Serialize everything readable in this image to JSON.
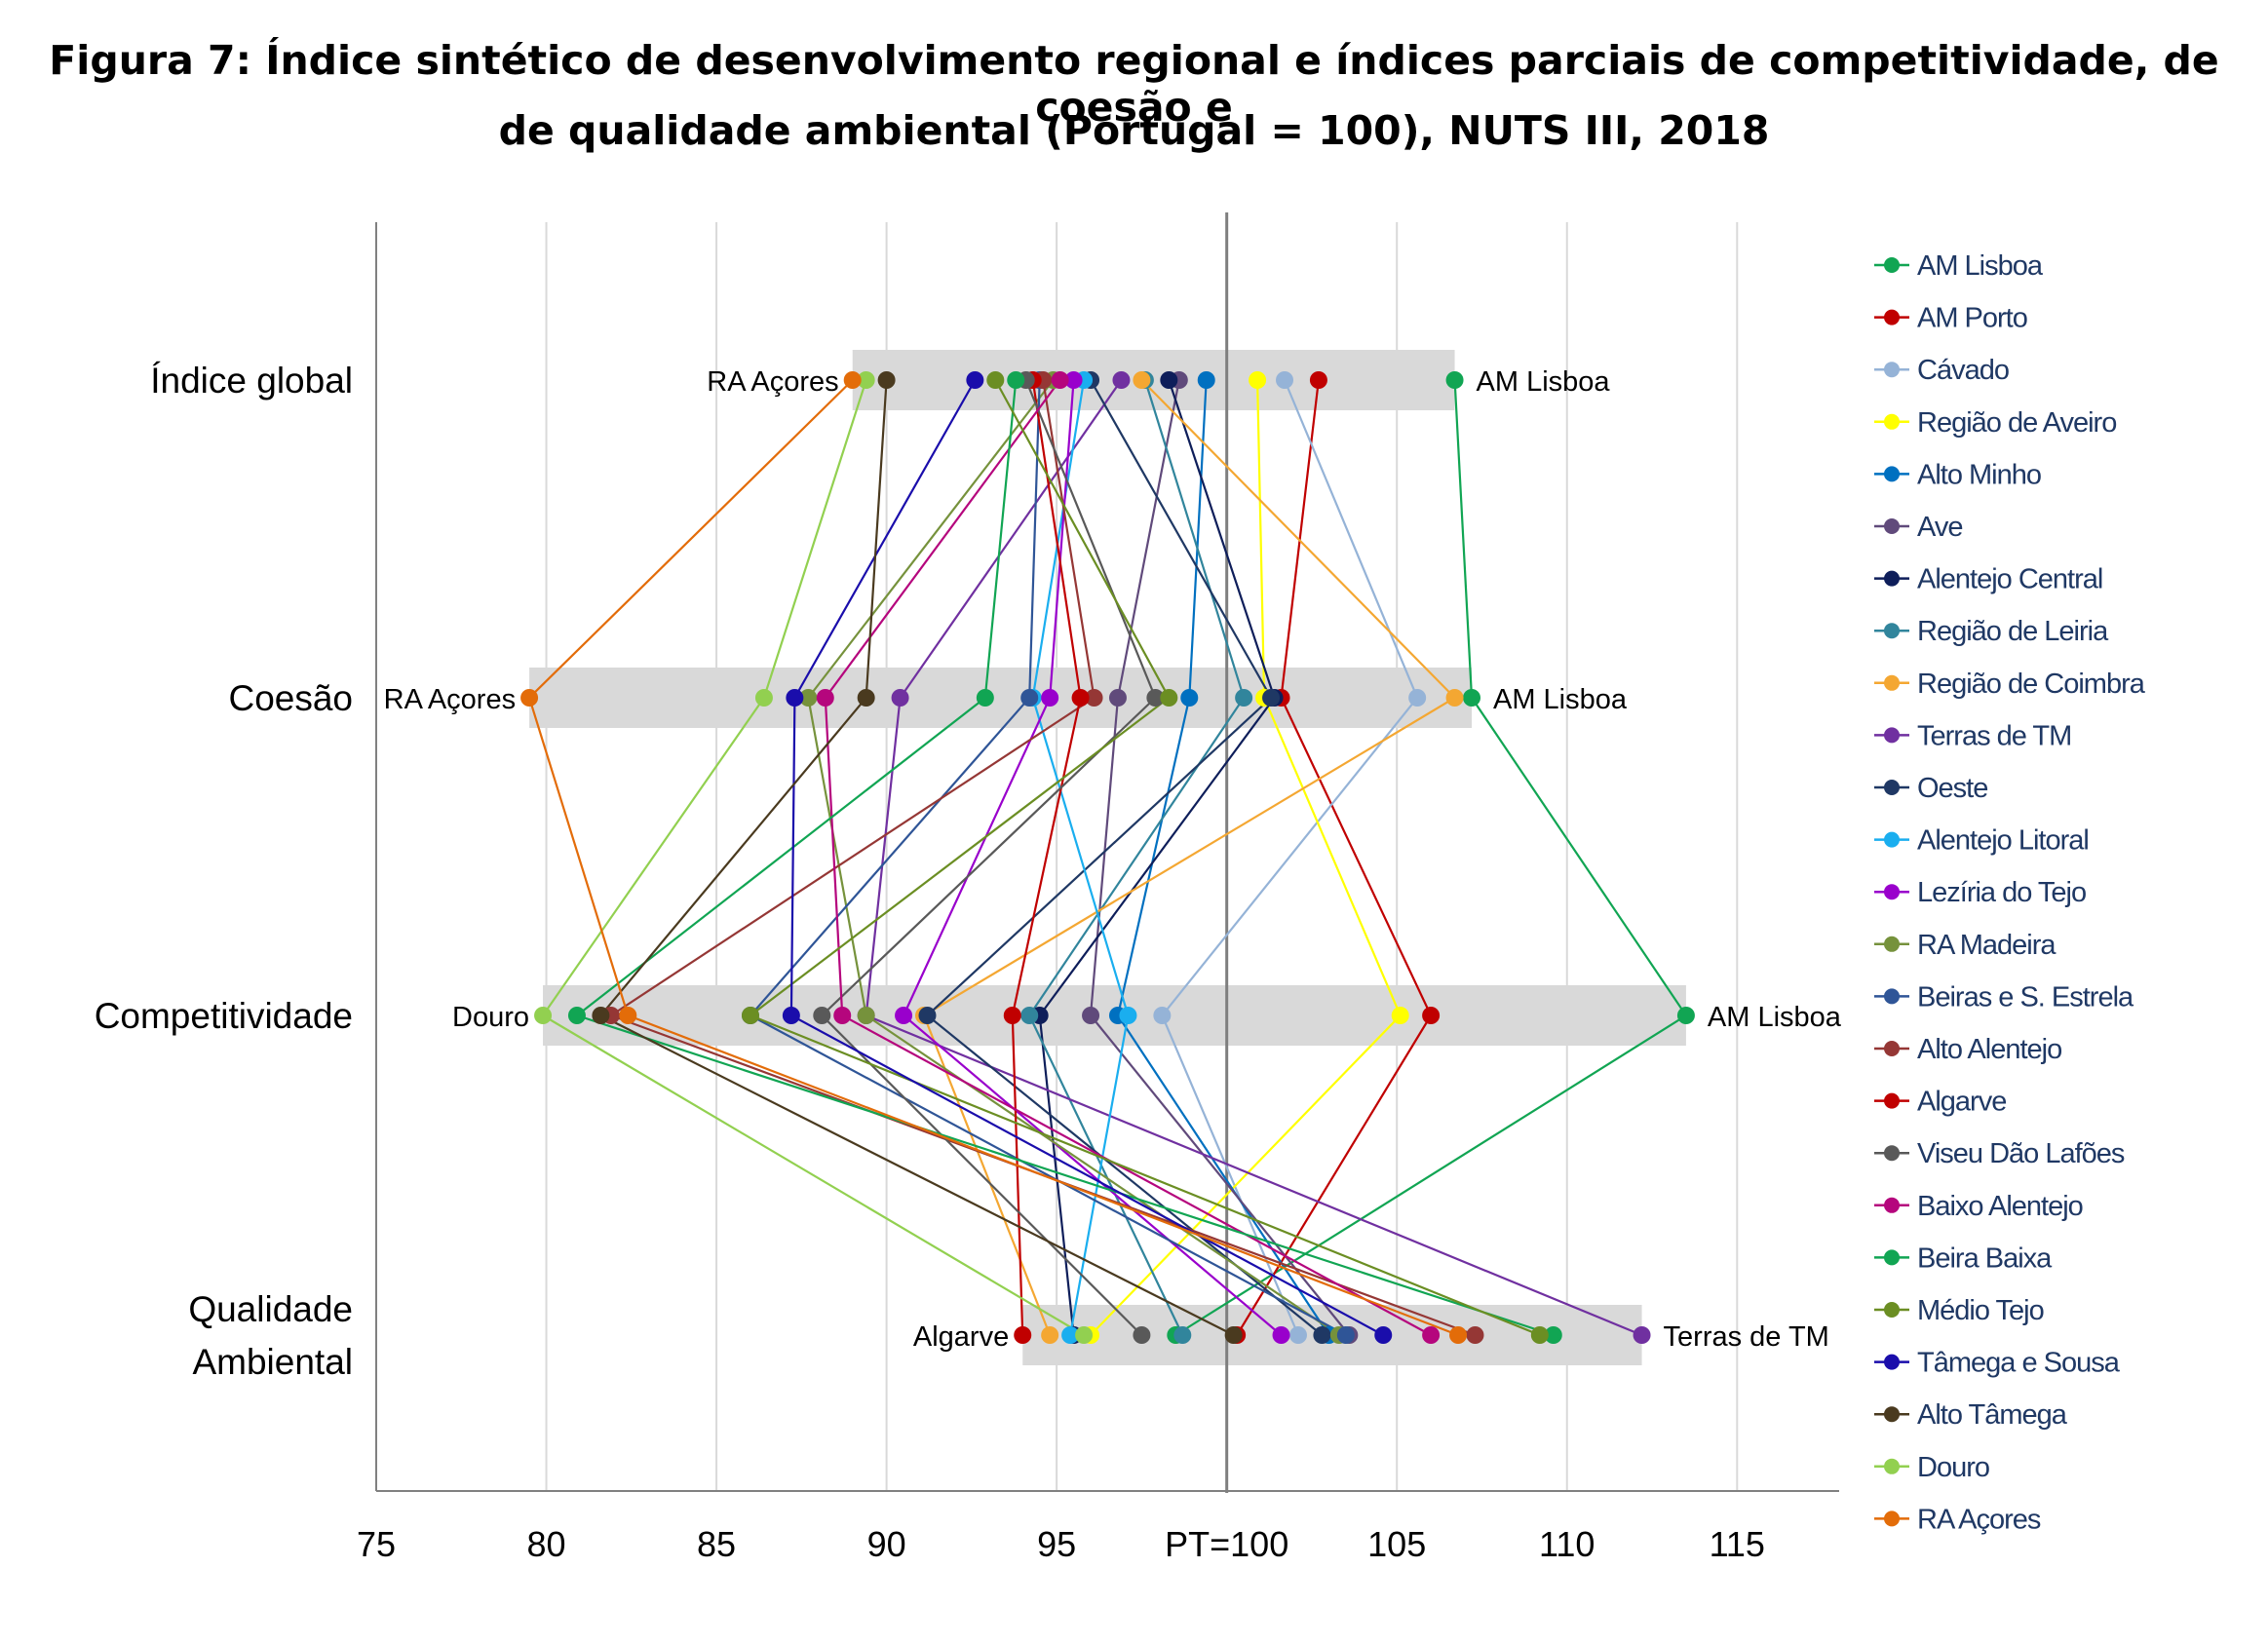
{
  "title_lines": [
    "Figura 7: Índice sintético de desenvolvimento regional e índices parciais de competitividade, de coesão e",
    "de qualidade ambiental (Portugal = 100), NUTS III, 2018"
  ],
  "chart_data": {
    "type": "line",
    "title": "Figura 7: Índice sintético de desenvolvimento regional e índices parciais de competitividade, de coesão e de qualidade ambiental (Portugal = 100), NUTS III, 2018",
    "categories": [
      "Índice global",
      "Coesão",
      "Competitividade",
      "Qualidade Ambiental"
    ],
    "category_labels": [
      [
        "Índice global"
      ],
      [
        "Coesão"
      ],
      [
        "Competitividade"
      ],
      [
        "Qualidade",
        "Ambiental"
      ]
    ],
    "xlim": [
      75,
      118
    ],
    "xticks": [
      75,
      80,
      85,
      90,
      95,
      100,
      105,
      110,
      115
    ],
    "xtick_labels": [
      "75",
      "80",
      "85",
      "90",
      "95",
      "PT=100",
      "105",
      "110",
      "115"
    ],
    "reference_value": 100,
    "grid": true,
    "legend_position": "right",
    "range_labels": [
      {
        "min": "RA Açores",
        "max": "AM Lisboa"
      },
      {
        "min": "RA Açores",
        "max": "AM Lisboa"
      },
      {
        "min": "Douro",
        "max": "AM Lisboa"
      },
      {
        "min": "Algarve",
        "max": "Terras de TM"
      }
    ],
    "series": [
      {
        "name": "AM Lisboa",
        "color": "#11A553",
        "values": [
          106.7,
          107.2,
          113.5,
          98.5
        ]
      },
      {
        "name": "AM Porto",
        "color": "#C00000",
        "values": [
          102.7,
          101.6,
          106.0,
          100.3
        ]
      },
      {
        "name": "Cávado",
        "color": "#95B3D7",
        "values": [
          101.7,
          105.6,
          98.1,
          102.1
        ]
      },
      {
        "name": "Região de Aveiro",
        "color": "#FFFF00",
        "values": [
          100.9,
          101.1,
          105.1,
          96.0
        ]
      },
      {
        "name": "Alto Minho",
        "color": "#0070C0",
        "values": [
          99.4,
          98.9,
          96.8,
          103.0
        ]
      },
      {
        "name": "Ave",
        "color": "#604A7B",
        "values": [
          98.6,
          96.8,
          96.0,
          103.6
        ]
      },
      {
        "name": "Alentejo Central",
        "color": "#0E1E5A",
        "values": [
          98.3,
          101.4,
          94.5,
          95.5
        ]
      },
      {
        "name": "Região de Leiria",
        "color": "#31859C",
        "values": [
          97.6,
          100.5,
          94.2,
          98.7
        ]
      },
      {
        "name": "Região de Coimbra",
        "color": "#F4A732",
        "values": [
          97.5,
          106.7,
          91.1,
          94.8
        ]
      },
      {
        "name": "Terras de TM",
        "color": "#7030A0",
        "values": [
          96.9,
          90.4,
          89.4,
          112.2
        ]
      },
      {
        "name": "Oeste",
        "color": "#1F3864",
        "values": [
          96.0,
          101.3,
          91.2,
          102.8
        ]
      },
      {
        "name": "Alentejo Litoral",
        "color": "#1AAEEF",
        "values": [
          95.8,
          94.3,
          97.1,
          95.4
        ]
      },
      {
        "name": "Lezíria do Tejo",
        "color": "#9900CC",
        "values": [
          95.5,
          94.8,
          90.5,
          101.6
        ]
      },
      {
        "name": "RA Madeira",
        "color": "#76923C",
        "values": [
          94.9,
          87.7,
          89.4,
          103.3
        ]
      },
      {
        "name": "Beiras e S. Estrela",
        "color": "#2F5597",
        "values": [
          94.5,
          94.2,
          86.0,
          103.5
        ]
      },
      {
        "name": "Alto Alentejo",
        "color": "#953735",
        "values": [
          94.6,
          96.1,
          81.9,
          107.3
        ]
      },
      {
        "name": "Algarve",
        "color": "#C00000",
        "values": [
          94.3,
          95.7,
          93.7,
          94.0
        ]
      },
      {
        "name": "Viseu Dão Lafões",
        "color": "#595959",
        "values": [
          94.1,
          97.9,
          88.1,
          97.5
        ]
      },
      {
        "name": "Baixo Alentejo",
        "color": "#B5067D",
        "values": [
          95.1,
          88.2,
          88.7,
          106.0
        ]
      },
      {
        "name": "Beira Baixa",
        "color": "#11A553",
        "values": [
          93.8,
          92.9,
          80.9,
          109.6
        ]
      },
      {
        "name": "Médio Tejo",
        "color": "#6B8E23",
        "values": [
          93.2,
          98.3,
          86.0,
          109.2
        ]
      },
      {
        "name": "Tâmega e Sousa",
        "color": "#1A0DAB",
        "values": [
          92.6,
          87.3,
          87.2,
          104.6
        ]
      },
      {
        "name": "Alto Tâmega",
        "color": "#4A3A1F",
        "values": [
          90.0,
          89.4,
          81.6,
          100.2
        ]
      },
      {
        "name": "Douro",
        "color": "#92D050",
        "values": [
          89.4,
          86.4,
          79.9,
          95.8
        ]
      },
      {
        "name": "RA Açores",
        "color": "#E36C09",
        "values": [
          89.0,
          79.5,
          82.4,
          106.8
        ]
      }
    ]
  }
}
